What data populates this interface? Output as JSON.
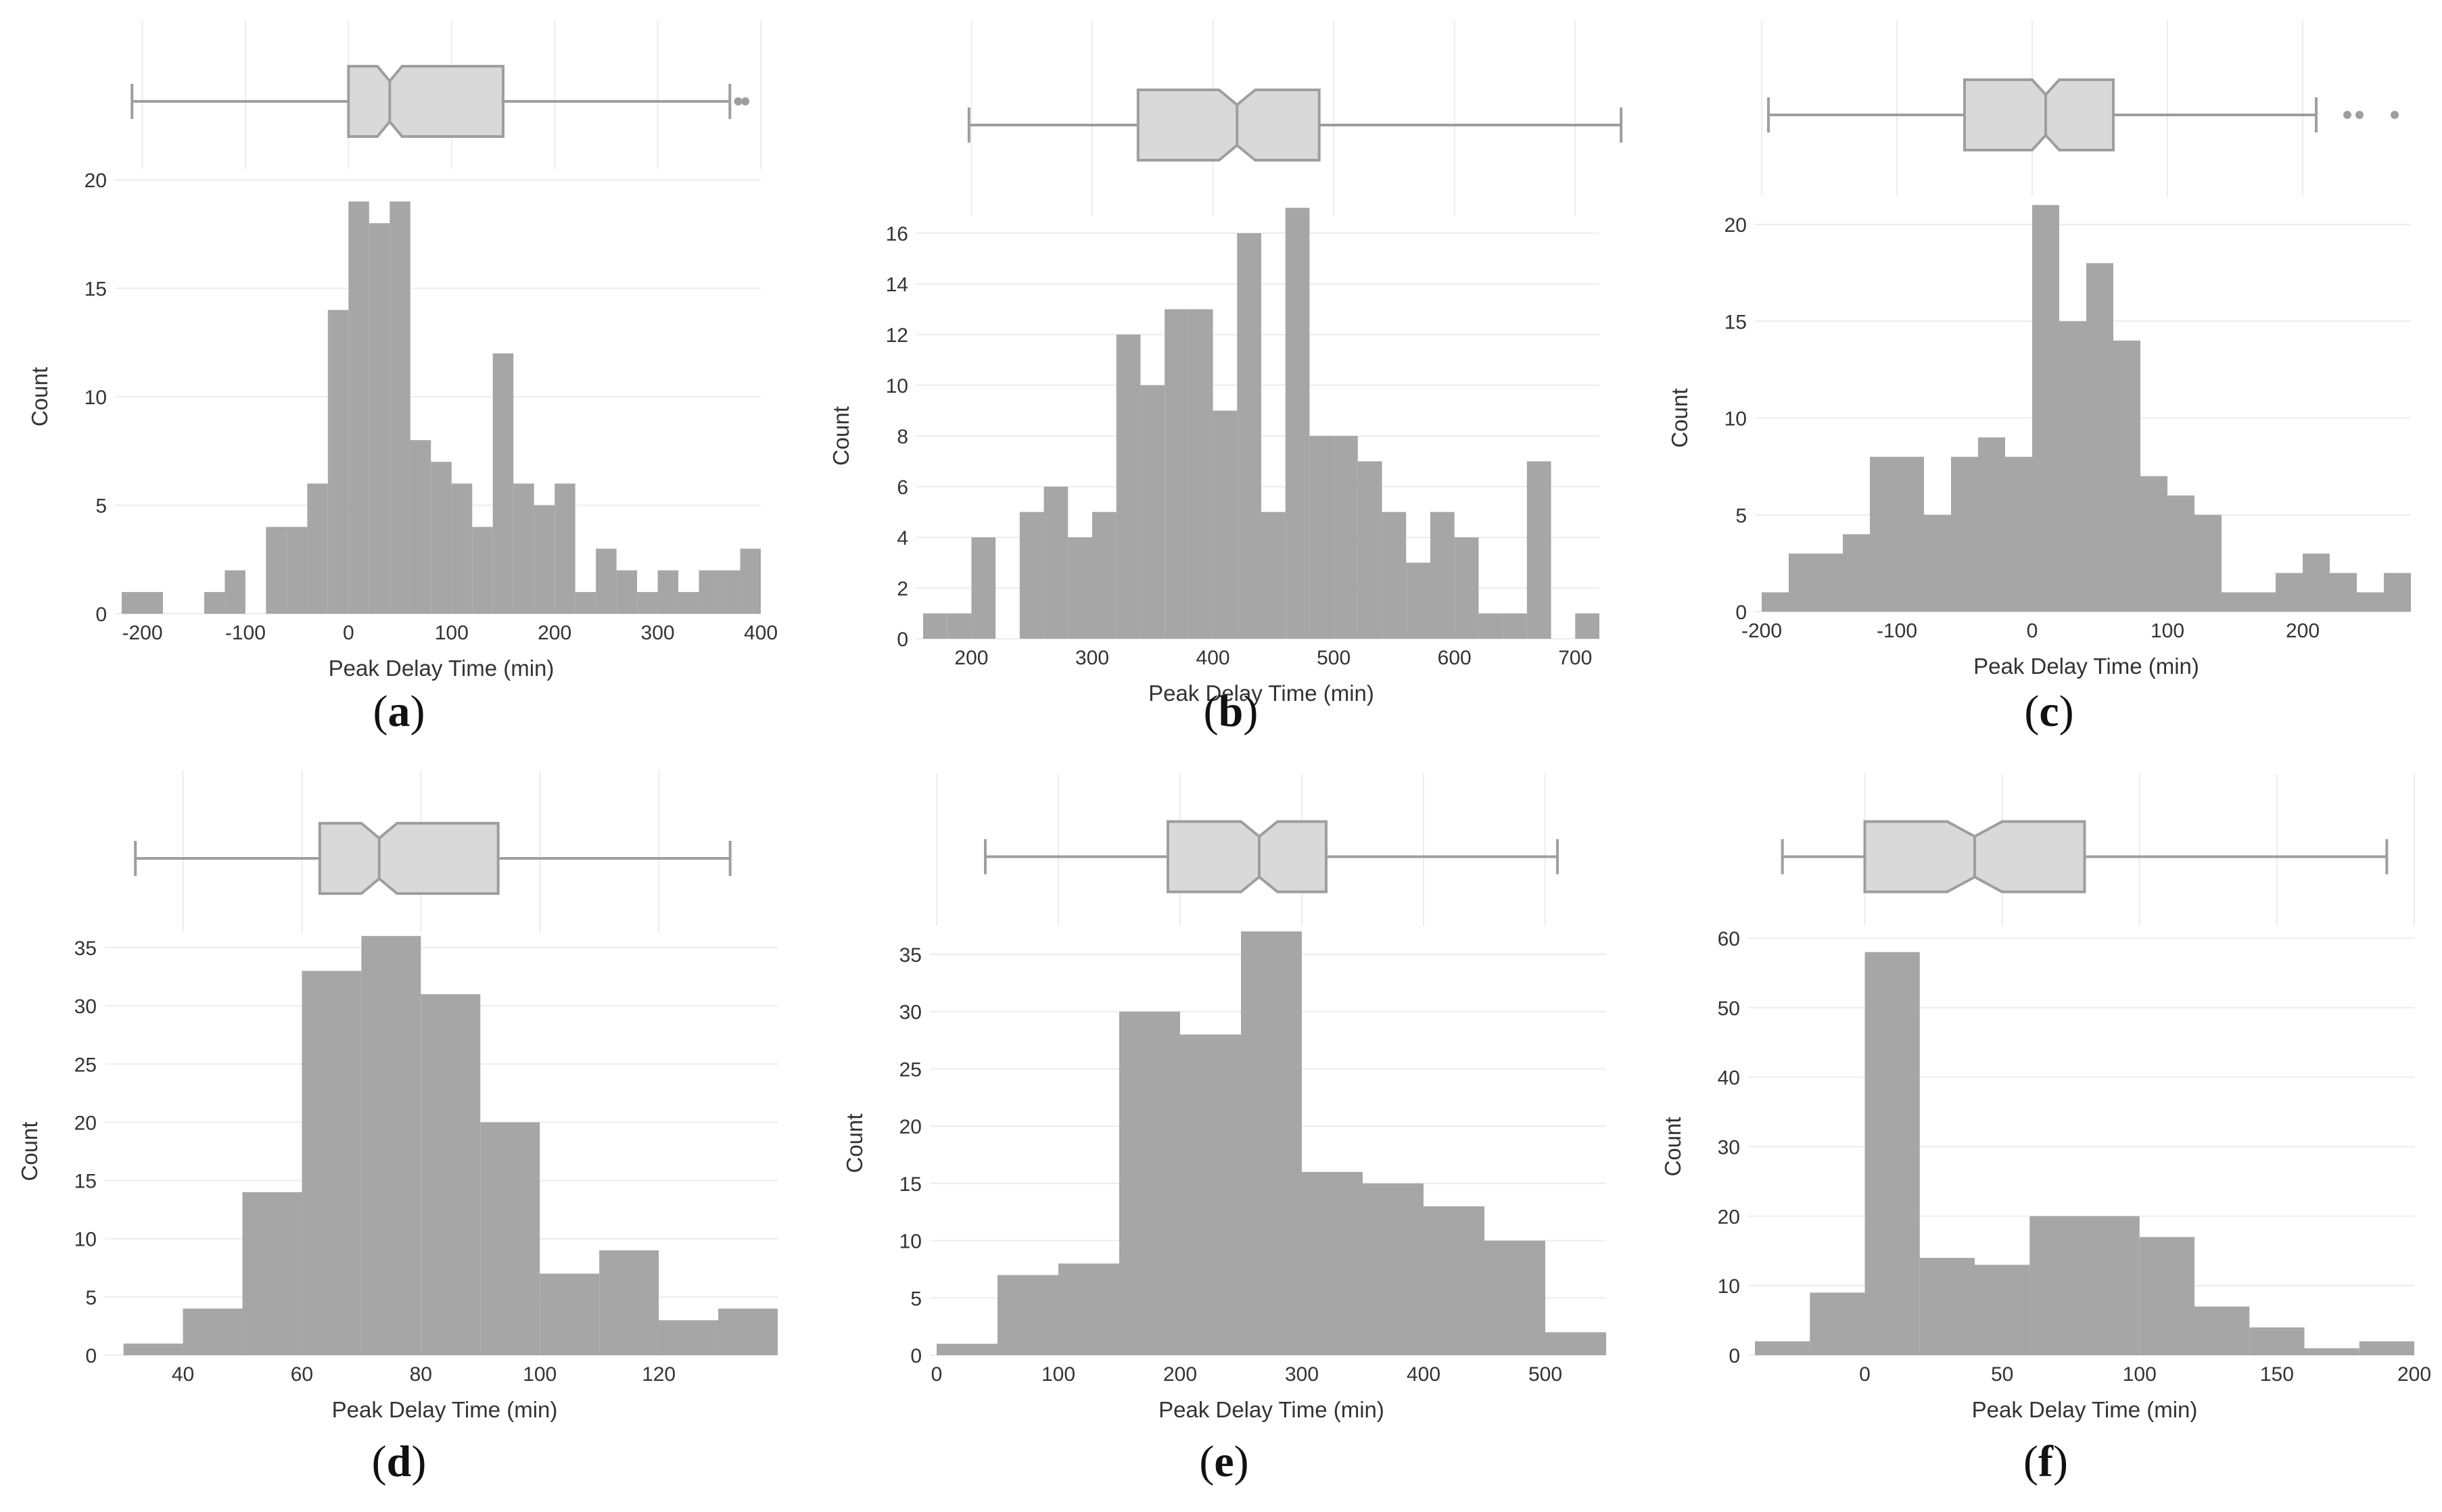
{
  "chart_data": [
    {
      "type": "histogram",
      "id": "a",
      "panel_label": "a",
      "xlabel": "Peak Delay Time (min)",
      "ylabel": "Count",
      "xlim": [
        -220,
        400
      ],
      "ylim": [
        0,
        20
      ],
      "x_ticks": [
        "-200",
        "-100",
        "0",
        "100",
        "200",
        "300",
        "400"
      ],
      "x_tick_values": [
        -200,
        -100,
        0,
        100,
        200,
        300,
        400
      ],
      "y_ticks": [
        "0",
        "5",
        "10",
        "15",
        "20"
      ],
      "y_tick_values": [
        0,
        5,
        10,
        15,
        20
      ],
      "bin_start": -220,
      "bin_width": 20,
      "counts": [
        1,
        1,
        0,
        0,
        1,
        2,
        0,
        4,
        4,
        6,
        14,
        19,
        18,
        19,
        8,
        7,
        6,
        4,
        12,
        6,
        5,
        6,
        1,
        3,
        2,
        1,
        2,
        1,
        2,
        2,
        3
      ],
      "boxplot": {
        "whisker_low": -210,
        "q1": 0,
        "median": 40,
        "q3": 150,
        "whisker_high": 370,
        "outliers": [
          378,
          385
        ],
        "notch_low": 28,
        "notch_high": 52
      }
    },
    {
      "type": "histogram",
      "id": "b",
      "panel_label": "b",
      "xlabel": "Peak Delay Time (min)",
      "ylabel": "Count",
      "xlim": [
        160,
        720
      ],
      "ylim": [
        0,
        16
      ],
      "x_ticks": [
        "200",
        "300",
        "400",
        "500",
        "600",
        "700"
      ],
      "x_tick_values": [
        200,
        300,
        400,
        500,
        600,
        700
      ],
      "y_ticks": [
        "0",
        "2",
        "4",
        "6",
        "8",
        "10",
        "12",
        "14",
        "16"
      ],
      "y_tick_values": [
        0,
        2,
        4,
        6,
        8,
        10,
        12,
        14,
        16
      ],
      "bin_start": 160,
      "bin_width": 20,
      "counts": [
        1,
        1,
        4,
        0,
        5,
        6,
        4,
        5,
        12,
        10,
        13,
        13,
        9,
        16,
        5,
        17,
        8,
        8,
        7,
        5,
        3,
        5,
        4,
        1,
        1,
        7,
        0,
        1
      ],
      "boxplot": {
        "whisker_low": 198,
        "q1": 338,
        "median": 420,
        "q3": 488,
        "whisker_high": 738,
        "outliers": [],
        "notch_low": 405,
        "notch_high": 435
      }
    },
    {
      "type": "histogram",
      "id": "c",
      "panel_label": "c",
      "xlabel": "Peak Delay Time (min)",
      "ylabel": "Count",
      "xlim": [
        -200,
        280
      ],
      "ylim": [
        0,
        20
      ],
      "x_ticks": [
        "-200",
        "-100",
        "0",
        "100",
        "200"
      ],
      "x_tick_values": [
        -200,
        -100,
        0,
        100,
        200
      ],
      "y_ticks": [
        "0",
        "5",
        "10",
        "15",
        "20"
      ],
      "y_tick_values": [
        0,
        5,
        10,
        15,
        20
      ],
      "bin_start": -200,
      "bin_width": 20,
      "counts": [
        1,
        3,
        3,
        4,
        8,
        8,
        5,
        8,
        9,
        8,
        21,
        15,
        18,
        14,
        7,
        6,
        5,
        1,
        1,
        2,
        3,
        2,
        1,
        2
      ],
      "boxplot": {
        "whisker_low": -195,
        "q1": -50,
        "median": 10,
        "q3": 60,
        "whisker_high": 210,
        "outliers": [
          233,
          242,
          268
        ],
        "notch_low": 0,
        "notch_high": 20
      }
    },
    {
      "type": "histogram",
      "id": "d",
      "panel_label": "d",
      "xlabel": "Peak Delay Time (min)",
      "ylabel": "Count",
      "xlim": [
        28,
        140
      ],
      "ylim": [
        0,
        35
      ],
      "x_ticks": [
        "40",
        "60",
        "80",
        "100",
        "120"
      ],
      "x_tick_values": [
        40,
        60,
        80,
        100,
        120
      ],
      "y_ticks": [
        "0",
        "5",
        "10",
        "15",
        "20",
        "25",
        "30",
        "35"
      ],
      "y_tick_values": [
        0,
        5,
        10,
        15,
        20,
        25,
        30,
        35
      ],
      "bin_start": 30,
      "bin_width": 10,
      "counts": [
        1,
        4,
        14,
        33,
        36,
        31,
        20,
        7,
        9,
        3,
        4
      ],
      "boxplot": {
        "whisker_low": 32,
        "q1": 63,
        "median": 73,
        "q3": 93,
        "whisker_high": 132,
        "outliers": [],
        "notch_low": 70,
        "notch_high": 76
      }
    },
    {
      "type": "histogram",
      "id": "e",
      "panel_label": "e",
      "xlabel": "Peak Delay Time (min)",
      "ylabel": "Count",
      "xlim": [
        0,
        550
      ],
      "ylim": [
        0,
        37
      ],
      "x_ticks": [
        "0",
        "100",
        "200",
        "300",
        "400",
        "500"
      ],
      "x_tick_values": [
        0,
        100,
        200,
        300,
        400,
        500
      ],
      "y_ticks": [
        "0",
        "5",
        "10",
        "15",
        "20",
        "25",
        "30",
        "35"
      ],
      "y_tick_values": [
        0,
        5,
        10,
        15,
        20,
        25,
        30,
        35
      ],
      "bin_start": 0,
      "bin_width": 50,
      "counts": [
        1,
        7,
        8,
        30,
        28,
        37,
        16,
        15,
        13,
        10,
        2
      ],
      "boxplot": {
        "whisker_low": 40,
        "q1": 190,
        "median": 265,
        "q3": 320,
        "whisker_high": 510,
        "outliers": [],
        "notch_low": 250,
        "notch_high": 280
      }
    },
    {
      "type": "histogram",
      "id": "f",
      "panel_label": "f",
      "xlabel": "Peak Delay Time (min)",
      "ylabel": "Count",
      "xlim": [
        -40,
        200
      ],
      "ylim": [
        0,
        60
      ],
      "x_ticks": [
        "0",
        "50",
        "100",
        "150",
        "200"
      ],
      "x_tick_values": [
        0,
        50,
        100,
        150,
        200
      ],
      "y_ticks": [
        "0",
        "10",
        "20",
        "30",
        "40",
        "50",
        "60"
      ],
      "y_tick_values": [
        0,
        10,
        20,
        30,
        40,
        50,
        60
      ],
      "bin_start": -40,
      "bin_width": 20,
      "counts": [
        2,
        9,
        58,
        14,
        13,
        20,
        20,
        17,
        7,
        4,
        1,
        2
      ],
      "boxplot": {
        "whisker_low": -30,
        "q1": 0,
        "median": 40,
        "q3": 80,
        "whisker_high": 190,
        "outliers": [],
        "notch_low": 30,
        "notch_high": 50
      }
    }
  ]
}
